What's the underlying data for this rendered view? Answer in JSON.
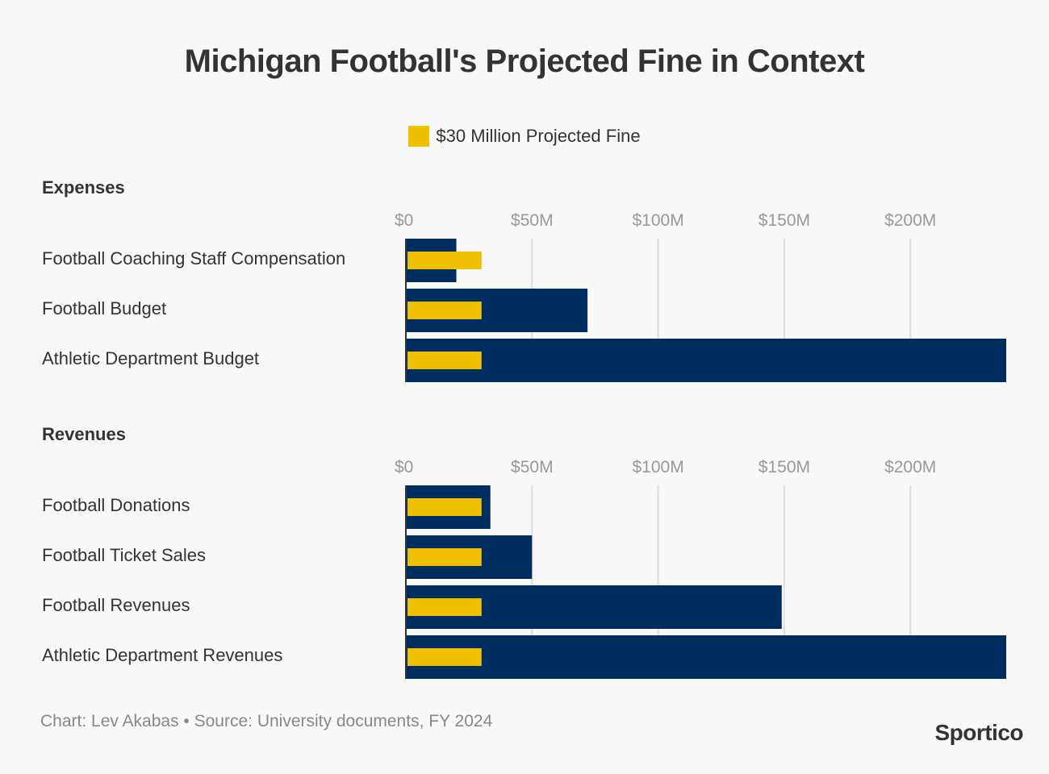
{
  "chart_data": {
    "type": "bar",
    "title": "Michigan Football's Projected Fine in Context",
    "legend": [
      {
        "name": "$30 Million Projected Fine",
        "color": "#eec000"
      }
    ],
    "legend_position": "top-center",
    "xlim": [
      0,
      240
    ],
    "x_ticks": [
      0,
      50,
      100,
      150,
      200
    ],
    "x_tick_labels": [
      "$0",
      "$50M",
      "$100M",
      "$150M",
      "$200M"
    ],
    "grid": true,
    "units": "millions of dollars",
    "bar_color": "#002d5f",
    "fine_value": 30,
    "fine_color": "#eec000",
    "panels": [
      {
        "name": "Expenses",
        "categories": [
          "Football Coaching Staff Compensation",
          "Football Budget",
          "Athletic Department Budget"
        ],
        "values": [
          20,
          72,
          238
        ]
      },
      {
        "name": "Revenues",
        "categories": [
          "Football Donations",
          "Football Ticket Sales",
          "Football Revenues",
          "Athletic Department Revenues"
        ],
        "values": [
          33.5,
          50,
          149,
          238
        ]
      }
    ]
  },
  "footer": {
    "credit": "Chart: Lev Akabas • Source: University documents, FY 2024",
    "logo": "Sportico"
  }
}
